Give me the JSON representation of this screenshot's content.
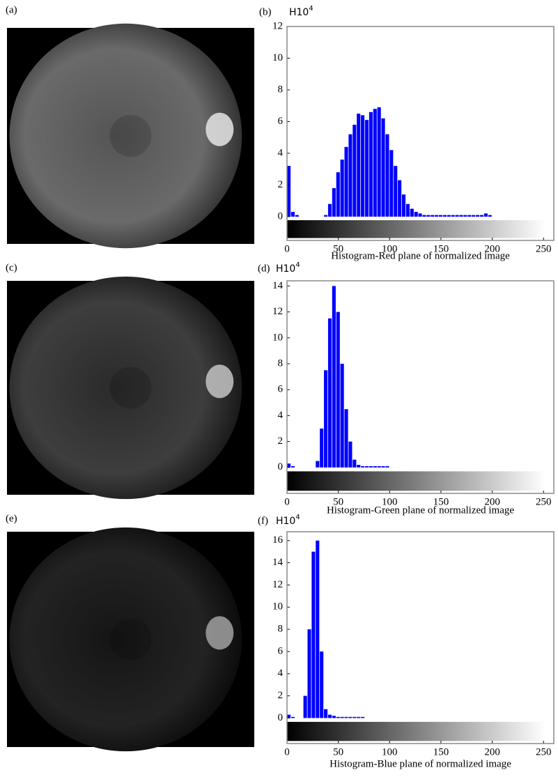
{
  "image_panels": [
    {
      "label": "(a)"
    },
    {
      "label": "(c)"
    },
    {
      "label": "(e)"
    }
  ],
  "chart_data": [
    {
      "type": "histogram",
      "panel_label": "(b)",
      "y_axis_label": "H10",
      "y_axis_label_exponent": "4",
      "x_axis_label": "Histogram-Red plane of normalized image",
      "color": "#0000ff",
      "bins": [
        0,
        4,
        8,
        12,
        16,
        20,
        24,
        28,
        32,
        36,
        40,
        44,
        48,
        52,
        56,
        60,
        64,
        68,
        72,
        76,
        80,
        84,
        88,
        92,
        96,
        100,
        104,
        108,
        112,
        116,
        120,
        124,
        128,
        132,
        136,
        140,
        144,
        148,
        152,
        156,
        160,
        164,
        168,
        172,
        176,
        180,
        184,
        188,
        192,
        196,
        200,
        204,
        208,
        212,
        216,
        220,
        224,
        228,
        232,
        236,
        240,
        244,
        248,
        252,
        256
      ],
      "counts": [
        3.2,
        0.3,
        0.1,
        0,
        0,
        0,
        0,
        0,
        0,
        0.1,
        0.8,
        1.8,
        2.8,
        3.6,
        4.4,
        5.2,
        5.8,
        6.5,
        6.4,
        6.1,
        6.6,
        6.8,
        6.9,
        6.2,
        5.2,
        4.2,
        3.2,
        2.3,
        1.4,
        0.8,
        0.5,
        0.3,
        0.2,
        0.1,
        0.1,
        0.1,
        0.1,
        0.1,
        0.1,
        0.1,
        0.1,
        0.1,
        0.1,
        0.1,
        0.1,
        0.1,
        0.1,
        0.1,
        0.2,
        0.1,
        0,
        0,
        0,
        0,
        0,
        0,
        0,
        0,
        0,
        0,
        0,
        0,
        0,
        0
      ],
      "xlim": [
        0,
        260
      ],
      "xticks": [
        0,
        50,
        100,
        150,
        200,
        250
      ],
      "ylim": [
        -1.5,
        12
      ],
      "yticks": [
        0,
        2,
        4,
        6,
        8,
        10,
        12
      ]
    },
    {
      "type": "histogram",
      "panel_label": "(d)",
      "y_axis_label": "H10",
      "y_axis_label_exponent": "4",
      "x_axis_label": "Histogram-Green plane of normalized image",
      "color": "#0000ff",
      "bins": [
        0,
        4,
        8,
        12,
        16,
        20,
        24,
        28,
        32,
        36,
        40,
        44,
        48,
        52,
        56,
        60,
        64,
        68,
        72,
        76,
        80,
        84,
        88,
        92,
        96,
        100,
        104,
        108,
        112,
        116,
        120,
        124,
        128,
        132,
        136,
        140,
        144,
        148,
        152,
        156,
        160,
        164,
        168,
        172,
        176,
        180,
        184,
        188,
        192,
        196,
        200,
        204,
        208,
        212,
        216,
        220,
        224,
        228,
        232,
        236,
        240,
        244,
        248,
        252,
        256
      ],
      "counts": [
        0.3,
        0.1,
        0,
        0,
        0,
        0,
        0,
        0.5,
        3,
        7.5,
        11.5,
        14,
        12,
        8,
        4.5,
        2,
        0.6,
        0.2,
        0.1,
        0.1,
        0.1,
        0.1,
        0.1,
        0.1,
        0.1,
        0,
        0,
        0,
        0,
        0,
        0,
        0,
        0,
        0,
        0,
        0,
        0,
        0,
        0,
        0,
        0,
        0,
        0,
        0,
        0,
        0,
        0,
        0,
        0,
        0,
        0,
        0,
        0,
        0,
        0,
        0,
        0,
        0,
        0,
        0,
        0,
        0,
        0,
        0
      ],
      "xlim": [
        0,
        260
      ],
      "xticks": [
        0,
        50,
        100,
        150,
        200,
        250
      ],
      "ylim": [
        -2,
        14.4
      ],
      "yticks": [
        0,
        2,
        4,
        6,
        8,
        10,
        12,
        14
      ]
    },
    {
      "type": "histogram",
      "panel_label": "(f)",
      "y_axis_label": "H10",
      "y_axis_label_exponent": "4",
      "x_axis_label": "Histogram-Blue plane of normalized image",
      "color": "#0000ff",
      "bins": [
        0,
        4,
        8,
        12,
        16,
        20,
        24,
        28,
        32,
        36,
        40,
        44,
        48,
        52,
        56,
        60,
        64,
        68,
        72,
        76,
        80,
        84,
        88,
        92,
        96,
        100,
        104,
        108,
        112,
        116,
        120,
        124,
        128,
        132,
        136,
        140,
        144,
        148,
        152,
        156,
        160,
        164,
        168,
        172,
        176,
        180,
        184,
        188,
        192,
        196,
        200,
        204,
        208,
        212,
        216,
        220,
        224,
        228,
        232,
        236,
        240,
        244,
        248,
        252,
        256
      ],
      "counts": [
        0.3,
        0.1,
        0,
        0,
        2,
        8,
        15,
        16,
        6,
        0.8,
        0.3,
        0.2,
        0.1,
        0.1,
        0.1,
        0.1,
        0.1,
        0.1,
        0.1,
        0,
        0,
        0,
        0,
        0,
        0,
        0,
        0,
        0,
        0,
        0,
        0,
        0,
        0,
        0,
        0,
        0,
        0,
        0,
        0,
        0,
        0,
        0,
        0,
        0,
        0,
        0,
        0,
        0,
        0,
        0,
        0,
        0,
        0,
        0,
        0,
        0,
        0,
        0,
        0,
        0,
        0,
        0,
        0,
        0
      ],
      "xlim": [
        0,
        260
      ],
      "xticks": [
        0,
        50,
        100,
        150,
        200,
        250
      ],
      "ylim": [
        -2.3,
        16.8
      ],
      "yticks": [
        0,
        2,
        4,
        6,
        8,
        10,
        12,
        14,
        16
      ]
    }
  ]
}
